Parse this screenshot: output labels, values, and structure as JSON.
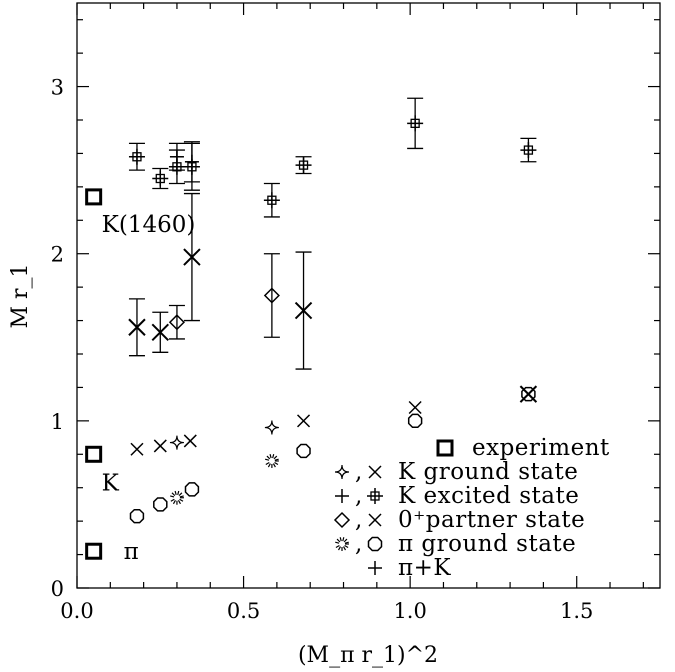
{
  "chart_data": {
    "type": "scatter",
    "xlabel": "(M_π r_1)^2",
    "ylabel": "M r_1",
    "xlim": [
      0,
      1.75
    ],
    "ylim": [
      0,
      3.5
    ],
    "xticks": [
      "0.0",
      "0.5",
      "1.0",
      "1.5"
    ],
    "yticks": [
      "0",
      "1",
      "2",
      "3"
    ],
    "grid": false,
    "legend_placement": "bottom-right",
    "legend": [
      {
        "symbols": "□",
        "label": "experiment"
      },
      {
        "symbols": "✧,✕",
        "label": "K ground state"
      },
      {
        "symbols": "⊹,⌑",
        "label": "K excited state"
      },
      {
        "symbols": "◇,✕",
        "label": "0⁺partner state"
      },
      {
        "symbols": "⋇,○",
        "label": "π ground state"
      },
      {
        "symbols": "+",
        "label": "π+K"
      }
    ],
    "annotations": [
      {
        "text": "K(1460)",
        "x": 0.05,
        "y": 2.34
      },
      {
        "text": "K",
        "x": 0.05,
        "y": 0.8
      },
      {
        "text": "π",
        "x": 0.05,
        "y": 0.22
      }
    ],
    "series": [
      {
        "marker": "square",
        "points": [
          [
            0.05,
            2.34
          ],
          [
            0.05,
            0.8
          ],
          [
            0.05,
            0.22
          ]
        ]
      },
      {
        "marker": "star4",
        "points": [
          [
            0.3,
            0.87
          ],
          [
            0.585,
            0.96
          ]
        ]
      },
      {
        "marker": "x",
        "points": [
          [
            0.18,
            0.83
          ],
          [
            0.25,
            0.85
          ],
          [
            0.34,
            0.88
          ],
          [
            0.68,
            1.0
          ],
          [
            1.015,
            1.08
          ]
        ]
      },
      {
        "marker": "cross-boxed",
        "points": [
          [
            0.18,
            2.58
          ],
          [
            0.25,
            2.45
          ],
          [
            0.3,
            2.52
          ],
          [
            0.345,
            2.52
          ],
          [
            0.585,
            2.32
          ],
          [
            0.68,
            2.53
          ],
          [
            1.015,
            2.78
          ],
          [
            1.355,
            2.62
          ]
        ],
        "err": [
          0.08,
          0.06,
          0.1,
          0.14,
          0.1,
          0.05,
          0.15,
          0.07
        ]
      },
      {
        "marker": "diamond",
        "points": [
          [
            0.3,
            1.59
          ],
          [
            0.585,
            1.75
          ]
        ],
        "err": [
          0.1,
          0.25
        ]
      },
      {
        "marker": "x-large",
        "points": [
          [
            0.18,
            1.56
          ],
          [
            0.25,
            1.53
          ],
          [
            0.345,
            1.98
          ],
          [
            0.68,
            1.66
          ],
          [
            1.355,
            1.16
          ]
        ],
        "err": [
          0.17,
          0.12,
          0.38,
          0.35,
          0
        ]
      },
      {
        "marker": "star6",
        "points": [
          [
            0.3,
            0.54
          ],
          [
            0.585,
            0.76
          ]
        ]
      },
      {
        "marker": "octagon",
        "points": [
          [
            0.18,
            0.43
          ],
          [
            0.25,
            0.5
          ],
          [
            0.345,
            0.59
          ],
          [
            0.68,
            0.82
          ],
          [
            1.015,
            1.0
          ],
          [
            1.355,
            1.16
          ]
        ]
      },
      {
        "marker": "plus",
        "points": [
          [
            0.3,
            2.58
          ],
          [
            0.345,
            2.55
          ]
        ],
        "err": [
          0.08,
          0.12
        ]
      }
    ]
  }
}
